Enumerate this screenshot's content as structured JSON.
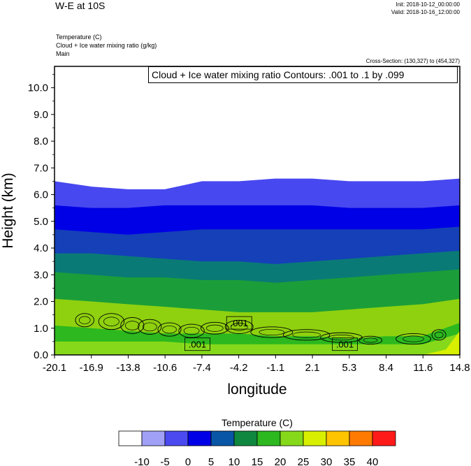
{
  "header": {
    "title": "W-E at 10S",
    "init": "Init: 2018-10-12_00:00:00",
    "valid": "Valid: 2018-10-16_12:00:00",
    "field1": "Temperature   (C)",
    "field2": "Cloud + Ice water mixing ratio   (g/kg)",
    "field3": "Main",
    "cross_section": "Cross-Section: (130,327) to (454,327)",
    "contour_info": "Cloud + Ice water mixing ratio Contours: .001 to .1 by .099"
  },
  "chart_data": {
    "type": "heatmap",
    "xlabel": "longitude",
    "ylabel": "Height (km)",
    "xlim": [
      -20.1,
      14.8
    ],
    "ylim": [
      0,
      10.8
    ],
    "x_ticks": [
      "-20.1",
      "-16.9",
      "-13.8",
      "-10.6",
      "-7.4",
      "-4.2",
      "-1.1",
      "2.1",
      "5.3",
      "8.4",
      "11.6",
      "14.8"
    ],
    "y_ticks": [
      {
        "value": 0,
        "label": "0.0"
      },
      {
        "value": 1,
        "label": "1.0"
      },
      {
        "value": 2,
        "label": "2.0"
      },
      {
        "value": 3,
        "label": "3.0"
      },
      {
        "value": 4,
        "label": "4.0"
      },
      {
        "value": 5,
        "label": "5.0"
      },
      {
        "value": 6,
        "label": "6.0"
      },
      {
        "value": 7,
        "label": "7.0"
      },
      {
        "value": 8,
        "label": "8.0"
      },
      {
        "value": 9,
        "label": "9.0"
      },
      {
        "value": 10,
        "label": "10.0"
      }
    ],
    "temperature_band_tops_km": [
      {
        "level": "above 40",
        "color": "#ff1a1a",
        "x": [
          -20.1,
          14.8
        ],
        "top": [
          0,
          0
        ]
      },
      {
        "level": "25 to 30",
        "color": "#d8f000",
        "x": [
          11.6,
          13.6,
          14.8
        ],
        "top": [
          0,
          0.2,
          0.9
        ]
      },
      {
        "level": "20 to 25",
        "color": "#86d91a",
        "x": [
          -20.1,
          -16.9,
          -13.8,
          -10.6,
          -7.4,
          -4.2,
          -1.1,
          2.1,
          5.3,
          8.4,
          11.6,
          14.8
        ],
        "top": [
          0.5,
          0.5,
          0.5,
          0.5,
          0.4,
          0.4,
          0.4,
          0.4,
          0.4,
          0.4,
          0.4,
          0.8
        ]
      },
      {
        "level": "15 to 20",
        "color": "#2cb81e",
        "x": [
          -20.1,
          -16.9,
          -13.8,
          -10.6,
          -7.4,
          -4.2,
          -1.1,
          2.1,
          5.3,
          8.4,
          11.6,
          14.8
        ],
        "top": [
          1.1,
          1.0,
          0.9,
          0.8,
          0.8,
          0.8,
          0.7,
          0.7,
          0.6,
          0.7,
          0.7,
          1.2
        ]
      },
      {
        "level": "10 to 15",
        "color": "#8fd10f",
        "x": [
          -20.1,
          -16.9,
          -13.8,
          -10.6,
          -7.4,
          -4.2,
          -1.1,
          2.1,
          5.3,
          8.4,
          11.6,
          14.8
        ],
        "top": [
          2.1,
          2.0,
          1.9,
          1.8,
          1.7,
          1.6,
          1.6,
          1.6,
          1.7,
          1.8,
          1.9,
          2.1
        ]
      },
      {
        "level": "5 to 10",
        "color": "#1b9e39",
        "x": [
          -20.1,
          -16.9,
          -13.8,
          -10.6,
          -7.4,
          -4.2,
          -1.1,
          2.1,
          5.3,
          8.4,
          11.6,
          14.8
        ],
        "top": [
          3.1,
          3.0,
          2.9,
          2.9,
          2.8,
          2.8,
          2.7,
          2.8,
          2.9,
          3.0,
          3.1,
          3.2
        ]
      },
      {
        "level": "0 to 5",
        "color": "#0a7a76",
        "x": [
          -20.1,
          -16.9,
          -13.8,
          -10.6,
          -7.4,
          -4.2,
          -1.1,
          2.1,
          5.3,
          8.4,
          11.6,
          14.8
        ],
        "top": [
          3.8,
          3.8,
          3.7,
          3.6,
          3.5,
          3.5,
          3.4,
          3.5,
          3.6,
          3.7,
          3.8,
          3.9
        ]
      },
      {
        "level": "-5 to 0",
        "color": "#1540b8",
        "x": [
          -20.1,
          -16.9,
          -13.8,
          -10.6,
          -7.4,
          -4.2,
          -1.1,
          2.1,
          5.3,
          8.4,
          11.6,
          14.8
        ],
        "top": [
          4.7,
          4.6,
          4.5,
          4.6,
          4.7,
          4.7,
          4.7,
          4.7,
          4.7,
          4.7,
          4.7,
          4.8
        ]
      },
      {
        "level": "-10 to -5",
        "color": "#0000e6",
        "x": [
          -20.1,
          -16.9,
          -13.8,
          -10.6,
          -7.4,
          -4.2,
          -1.1,
          2.1,
          5.3,
          8.4,
          11.6,
          14.8
        ],
        "top": [
          5.6,
          5.5,
          5.5,
          5.6,
          5.6,
          5.6,
          5.6,
          5.6,
          5.5,
          5.5,
          5.5,
          5.6
        ]
      },
      {
        "level": "-15 to -10",
        "color": "#4848f0",
        "x": [
          -20.1,
          -16.9,
          -13.8,
          -10.6,
          -7.4,
          -4.2,
          -1.1,
          2.1,
          5.3,
          8.4,
          11.6,
          14.8
        ],
        "top": [
          6.5,
          6.3,
          6.2,
          6.2,
          6.5,
          6.5,
          6.6,
          6.6,
          6.5,
          6.5,
          6.5,
          6.6
        ]
      }
    ],
    "contour_labels": [
      {
        "text": ".001",
        "x": -4.2,
        "y": 1.2
      },
      {
        "text": ".001",
        "x": -7.8,
        "y": 0.4
      },
      {
        "text": ".001",
        "x": 4.9,
        "y": 0.4
      }
    ],
    "cloud_contours": [
      {
        "cx": -17.5,
        "cy": 1.3,
        "rx": 0.8,
        "ry": 0.25
      },
      {
        "cx": -15.2,
        "cy": 1.25,
        "rx": 1.1,
        "ry": 0.3
      },
      {
        "cx": -13.4,
        "cy": 1.1,
        "rx": 1.0,
        "ry": 0.3
      },
      {
        "cx": -11.9,
        "cy": 1.05,
        "rx": 1.0,
        "ry": 0.28
      },
      {
        "cx": -10.2,
        "cy": 0.95,
        "rx": 1.0,
        "ry": 0.25
      },
      {
        "cx": -8.3,
        "cy": 0.9,
        "rx": 1.1,
        "ry": 0.25
      },
      {
        "cx": -6.3,
        "cy": 1.0,
        "rx": 1.2,
        "ry": 0.22
      },
      {
        "cx": -4.2,
        "cy": 1.05,
        "rx": 1.2,
        "ry": 0.25
      },
      {
        "cx": -1.4,
        "cy": 0.85,
        "rx": 1.8,
        "ry": 0.2
      },
      {
        "cx": 1.6,
        "cy": 0.75,
        "rx": 2.0,
        "ry": 0.2
      },
      {
        "cx": 4.6,
        "cy": 0.65,
        "rx": 1.8,
        "ry": 0.18
      },
      {
        "cx": 7.1,
        "cy": 0.55,
        "rx": 1.0,
        "ry": 0.15
      },
      {
        "cx": 10.8,
        "cy": 0.6,
        "rx": 1.5,
        "ry": 0.2
      },
      {
        "cx": 13.0,
        "cy": 0.75,
        "rx": 0.6,
        "ry": 0.2
      }
    ],
    "legend": {
      "title": "Temperature  (C)",
      "colors": [
        "#ffffff",
        "#a0a0f7",
        "#4a4af0",
        "#0000e6",
        "#0a56a6",
        "#10873e",
        "#2cb81e",
        "#86d91a",
        "#d8f000",
        "#ffc400",
        "#ff7a00",
        "#ff1a1a"
      ],
      "labels": [
        "-10",
        "-5",
        "0",
        "5",
        "10",
        "15",
        "20",
        "25",
        "30",
        "35",
        "40"
      ]
    }
  }
}
